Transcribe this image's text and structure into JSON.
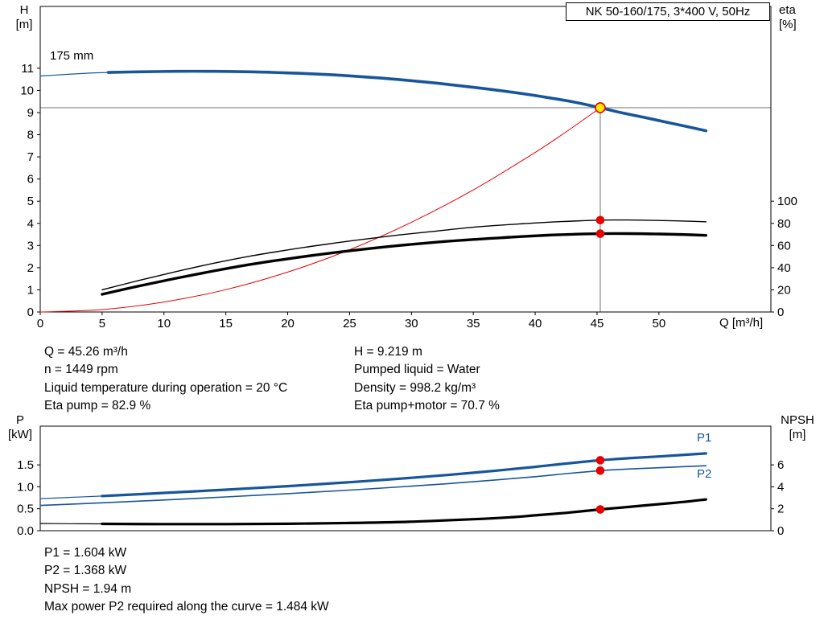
{
  "header": {
    "title_box": "NK 50-160/175, 3*400 V, 50Hz"
  },
  "axes_labels": {
    "top_left_line1": "H",
    "top_left_line2": "[m]",
    "top_right_line1": "eta",
    "top_right_line2": "[%]",
    "x_unit": "Q [m³/h]",
    "bottom_left_line1": "P",
    "bottom_left_line2": "[kW]",
    "bottom_right_line1": "NPSH",
    "bottom_right_line2": "[m]"
  },
  "curve_labels": {
    "impeller": "175 mm",
    "p1": "P1",
    "p2": "P2"
  },
  "info_top": {
    "left": [
      "Q = 45.26 m³/h",
      "n = 1449 rpm",
      "Liquid temperature during operation = 20 °C",
      "Eta pump = 82.9 %"
    ],
    "right": [
      "H = 9.219 m",
      "Pumped liquid = Water",
      "Density = 998.2 kg/m³",
      "Eta pump+motor = 70.7 %"
    ]
  },
  "info_bottom": [
    "P1 = 1.604 kW",
    "P2 = 1.368 kW",
    "NPSH = 1.94 m",
    "Max power P2 required along the curve = 1.484 kW"
  ],
  "colors": {
    "curve_blue": "#17559c",
    "marker_red": "#e60000",
    "duty_yellow": "#ffe600",
    "guide_gray": "#878787"
  },
  "chart_data": [
    {
      "type": "line",
      "title": "NK 50-160/175, 3*400 V, 50Hz",
      "xlabel": "Q [m³/h]",
      "ylabel_left": "H [m]",
      "ylabel_right": "eta [%]",
      "xlim": [
        0,
        59.05
      ],
      "ylim_left": [
        0,
        13.79
      ],
      "right_to_left_ratio": 0.05,
      "show_x_labels": true,
      "x_ticks": [
        {
          "v": 0,
          "label": "0"
        },
        {
          "v": 5,
          "label": "5"
        },
        {
          "v": 10,
          "label": "10"
        },
        {
          "v": 15,
          "label": "15"
        },
        {
          "v": 20,
          "label": "20"
        },
        {
          "v": 25,
          "label": "25"
        },
        {
          "v": 30,
          "label": "30"
        },
        {
          "v": 35,
          "label": "35"
        },
        {
          "v": 40,
          "label": "40"
        },
        {
          "v": 45,
          "label": "45"
        },
        {
          "v": 50,
          "label": "50"
        }
      ],
      "y_ticks_left": [
        {
          "v": 0,
          "label": "0"
        },
        {
          "v": 1,
          "label": "1"
        },
        {
          "v": 2,
          "label": "2"
        },
        {
          "v": 3,
          "label": "3"
        },
        {
          "v": 4,
          "label": "4"
        },
        {
          "v": 5,
          "label": "5"
        },
        {
          "v": 6,
          "label": "6"
        },
        {
          "v": 7,
          "label": "7"
        },
        {
          "v": 8,
          "label": "8"
        },
        {
          "v": 9,
          "label": "9"
        },
        {
          "v": 10,
          "label": "10"
        },
        {
          "v": 11,
          "label": "11"
        }
      ],
      "y_ticks_right": [
        {
          "v": 0,
          "label": "0"
        },
        {
          "v": 20,
          "label": "20"
        },
        {
          "v": 40,
          "label": "40"
        },
        {
          "v": 60,
          "label": "60"
        },
        {
          "v": 80,
          "label": "80"
        },
        {
          "v": 100,
          "label": "100"
        }
      ],
      "duty_point": {
        "q": 45.26,
        "h": 9.219
      },
      "series": [
        {
          "name": "head-curve-lead",
          "axis": "left",
          "color": "#17559c",
          "width": 1.2,
          "points": [
            [
              0,
              10.65
            ],
            [
              2,
              10.72
            ],
            [
              4,
              10.78
            ],
            [
              5.5,
              10.81
            ]
          ]
        },
        {
          "name": "head-curve-175mm",
          "axis": "left",
          "color": "#17559c",
          "width": 3.6,
          "points": [
            [
              5.5,
              10.81
            ],
            [
              8,
              10.84
            ],
            [
              11,
              10.86
            ],
            [
              14,
              10.86
            ],
            [
              17,
              10.84
            ],
            [
              20,
              10.79
            ],
            [
              23,
              10.72
            ],
            [
              26,
              10.62
            ],
            [
              29,
              10.49
            ],
            [
              32,
              10.33
            ],
            [
              35,
              10.14
            ],
            [
              38,
              9.93
            ],
            [
              41,
              9.68
            ],
            [
              43,
              9.49
            ],
            [
              45.26,
              9.219
            ],
            [
              47,
              8.99
            ],
            [
              49,
              8.76
            ],
            [
              51,
              8.52
            ],
            [
              53.8,
              8.18
            ]
          ]
        },
        {
          "name": "system-curve",
          "axis": "left",
          "color": "#e60000",
          "width": 1,
          "points": [
            [
              0,
              0
            ],
            [
              5,
              0.11
            ],
            [
              10,
              0.45
            ],
            [
              15,
              1.01
            ],
            [
              20,
              1.8
            ],
            [
              25,
              2.81
            ],
            [
              30,
              4.05
            ],
            [
              35,
              5.51
            ],
            [
              40,
              7.2
            ],
            [
              42.5,
              8.13
            ],
            [
              45.26,
              9.219
            ]
          ]
        },
        {
          "name": "eta-pump-curve",
          "axis": "right",
          "color": "#000000",
          "width": 1.4,
          "points": [
            [
              5,
              20
            ],
            [
              8,
              28.5
            ],
            [
              11,
              36.5
            ],
            [
              14,
              44
            ],
            [
              17,
              50.5
            ],
            [
              20,
              56
            ],
            [
              23,
              61
            ],
            [
              26,
              65.5
            ],
            [
              29,
              69.5
            ],
            [
              32,
              73
            ],
            [
              35,
              76.5
            ],
            [
              38,
              79
            ],
            [
              41,
              81
            ],
            [
              43,
              82
            ],
            [
              45.26,
              82.9
            ],
            [
              47.5,
              83
            ],
            [
              50,
              82.6
            ],
            [
              52,
              82.1
            ],
            [
              53.8,
              81.4
            ]
          ]
        },
        {
          "name": "eta-pump-motor-curve",
          "axis": "right",
          "color": "#000000",
          "width": 3.4,
          "points": [
            [
              5,
              16
            ],
            [
              8,
              23.5
            ],
            [
              11,
              30.5
            ],
            [
              14,
              37
            ],
            [
              17,
              43
            ],
            [
              20,
              48
            ],
            [
              23,
              52.5
            ],
            [
              26,
              56.5
            ],
            [
              29,
              60
            ],
            [
              32,
              63
            ],
            [
              35,
              65.5
            ],
            [
              38,
              67.5
            ],
            [
              41,
              69.3
            ],
            [
              43,
              70.1
            ],
            [
              45.26,
              70.7
            ],
            [
              47.5,
              70.8
            ],
            [
              50,
              70.4
            ],
            [
              52,
              69.9
            ],
            [
              53.8,
              69.2
            ]
          ]
        }
      ],
      "markers": [
        {
          "name": "eta-pump-marker",
          "q": 45.26,
          "v": 82.9,
          "axis": "right",
          "r": 4.5,
          "fill": "#e60000",
          "stroke": "#e60000"
        },
        {
          "name": "eta-pump-motor-marker",
          "q": 45.26,
          "v": 70.7,
          "axis": "right",
          "r": 4.5,
          "fill": "#e60000",
          "stroke": "#e60000"
        },
        {
          "name": "duty-point-marker",
          "q": 45.26,
          "v": 9.219,
          "axis": "left",
          "r": 6,
          "fill": "#ffe600",
          "stroke": "#e60000"
        }
      ]
    },
    {
      "type": "line",
      "title": "Power and NPSH curves",
      "xlabel": "Q [m³/h]",
      "ylabel_left": "P [kW]",
      "ylabel_right": "NPSH [m]",
      "xlim": [
        0,
        59.05
      ],
      "ylim_left": [
        0,
        2.381
      ],
      "right_to_left_ratio": 0.25,
      "show_x_labels": false,
      "x_ticks": [],
      "y_ticks_left": [
        {
          "v": 0,
          "label": "0.0"
        },
        {
          "v": 0.5,
          "label": "0.5"
        },
        {
          "v": 1,
          "label": "1.0"
        },
        {
          "v": 1.5,
          "label": "1.5"
        }
      ],
      "y_ticks_right": [
        {
          "v": 0,
          "label": "0"
        },
        {
          "v": 2,
          "label": "2"
        },
        {
          "v": 4,
          "label": "4"
        },
        {
          "v": 6,
          "label": "6"
        }
      ],
      "series": [
        {
          "name": "p1-curve-lead",
          "axis": "left",
          "color": "#17559c",
          "width": 1.2,
          "points": [
            [
              0,
              0.73
            ],
            [
              2.5,
              0.76
            ],
            [
              5,
              0.79
            ]
          ]
        },
        {
          "name": "p1-curve",
          "axis": "left",
          "color": "#17559c",
          "width": 3.2,
          "points": [
            [
              5,
              0.79
            ],
            [
              10,
              0.86
            ],
            [
              15,
              0.935
            ],
            [
              20,
              1.015
            ],
            [
              25,
              1.105
            ],
            [
              30,
              1.205
            ],
            [
              35,
              1.32
            ],
            [
              40,
              1.455
            ],
            [
              42.5,
              1.53
            ],
            [
              45.26,
              1.604
            ],
            [
              47.5,
              1.65
            ],
            [
              50,
              1.69
            ],
            [
              53.8,
              1.76
            ]
          ]
        },
        {
          "name": "p2-curve",
          "axis": "left",
          "color": "#17559c",
          "width": 1.6,
          "points": [
            [
              0,
              0.575
            ],
            [
              5,
              0.635
            ],
            [
              10,
              0.7
            ],
            [
              15,
              0.77
            ],
            [
              20,
              0.845
            ],
            [
              25,
              0.925
            ],
            [
              30,
              1.015
            ],
            [
              35,
              1.115
            ],
            [
              40,
              1.23
            ],
            [
              42.5,
              1.3
            ],
            [
              45.26,
              1.368
            ],
            [
              47.5,
              1.405
            ],
            [
              50,
              1.435
            ],
            [
              53.8,
              1.48
            ]
          ]
        },
        {
          "name": "npsh-curve-lead",
          "axis": "right",
          "color": "#000000",
          "width": 1.2,
          "points": [
            [
              0,
              0.66
            ],
            [
              2.5,
              0.64
            ],
            [
              5,
              0.62
            ]
          ]
        },
        {
          "name": "npsh-curve",
          "axis": "right",
          "color": "#000000",
          "width": 3.2,
          "points": [
            [
              5,
              0.62
            ],
            [
              10,
              0.6
            ],
            [
              15,
              0.6
            ],
            [
              20,
              0.63
            ],
            [
              25,
              0.7
            ],
            [
              30,
              0.82
            ],
            [
              35,
              1.05
            ],
            [
              38,
              1.22
            ],
            [
              40,
              1.4
            ],
            [
              42.5,
              1.63
            ],
            [
              45.26,
              1.94
            ],
            [
              47.5,
              2.16
            ],
            [
              50,
              2.42
            ],
            [
              52,
              2.62
            ],
            [
              53.8,
              2.85
            ]
          ]
        }
      ],
      "markers": [
        {
          "name": "p1-marker",
          "q": 45.26,
          "v": 1.604,
          "axis": "left",
          "r": 4.5,
          "fill": "#e60000",
          "stroke": "#e60000"
        },
        {
          "name": "p2-marker",
          "q": 45.26,
          "v": 1.368,
          "axis": "left",
          "r": 4.5,
          "fill": "#e60000",
          "stroke": "#e60000"
        },
        {
          "name": "npsh-marker",
          "q": 45.26,
          "v": 1.94,
          "axis": "right",
          "r": 4.5,
          "fill": "#e60000",
          "stroke": "#e60000"
        }
      ]
    }
  ]
}
